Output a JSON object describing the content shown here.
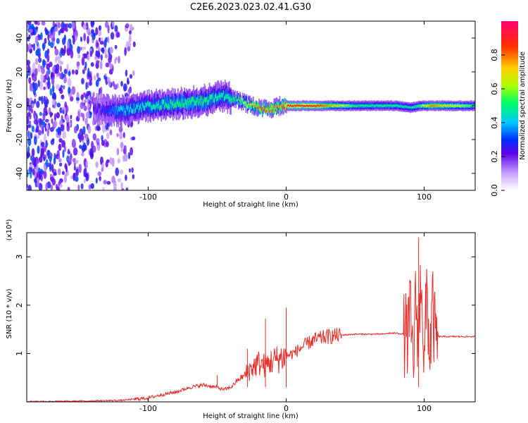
{
  "title": "C2E6.2023.023.02.41.G30",
  "chart_data": [
    {
      "type": "heatmap",
      "xlabel": "Height of straight line (km)",
      "ylabel": "Frequency (Hz)",
      "xlim": [
        -188,
        137
      ],
      "ylim": [
        -50,
        50
      ],
      "x_ticks": [
        -100,
        0,
        100
      ],
      "x_tick_labels": [
        "-100",
        "0",
        "100"
      ],
      "y_ticks": [
        -40,
        -20,
        0,
        20,
        40
      ],
      "y_tick_labels": [
        "-40",
        "-20",
        "0",
        "20",
        "40"
      ],
      "colorbar": {
        "label": "Normalized spectral amplitude",
        "range": [
          0,
          1
        ],
        "ticks": [
          0.0,
          0.2,
          0.4,
          0.6,
          0.8
        ],
        "tick_labels": [
          "0.0",
          "0.2",
          "0.4",
          "0.6",
          "0.8"
        ],
        "colors": [
          "#ffffff",
          "#b47cff",
          "#5a00e8",
          "#0040ff",
          "#00d8ff",
          "#00ff60",
          "#c8ff00",
          "#ffd000",
          "#ff4000",
          "#ff0070"
        ]
      },
      "ridge": {
        "description_x": [
          -135,
          -120,
          -100,
          -80,
          -60,
          -45,
          -35,
          -25,
          -18,
          -10,
          -5,
          0,
          20,
          50,
          80,
          90,
          97,
          105,
          137
        ],
        "center_freq": [
          -2,
          -3,
          0,
          1,
          3,
          6,
          3,
          0,
          -2,
          -2,
          0,
          0,
          0,
          0,
          0,
          -1,
          0,
          0,
          0
        ],
        "peak_amplitude": [
          0.25,
          0.45,
          0.5,
          0.55,
          0.55,
          0.5,
          0.6,
          0.75,
          0.9,
          0.85,
          0.8,
          0.95,
          0.95,
          0.55,
          0.55,
          0.5,
          0.6,
          0.85,
          0.55
        ]
      },
      "noise_region_xlim": [
        -188,
        -110
      ]
    },
    {
      "type": "line",
      "xlabel": "Height of straight line (km)",
      "ylabel": "SNR (10 * v/v)",
      "y_multiplier_label": "(x10⁴)",
      "xlim": [
        -188,
        137
      ],
      "ylim": [
        0,
        3.5
      ],
      "x_ticks": [
        -100,
        0,
        100
      ],
      "x_tick_labels": [
        "-100",
        "0",
        "100"
      ],
      "y_ticks": [
        1,
        2,
        3
      ],
      "y_tick_labels": [
        "1",
        "2",
        "3"
      ],
      "series": [
        {
          "color": "#e8302c",
          "x": [
            -188,
            -160,
            -140,
            -120,
            -100,
            -90,
            -80,
            -70,
            -60,
            -50,
            -45,
            -40,
            -35,
            -30,
            -25,
            -20,
            -15,
            -10,
            -5,
            0,
            5,
            10,
            15,
            20,
            30,
            40,
            50,
            60,
            70,
            75,
            80,
            85,
            88,
            90,
            92,
            94,
            96,
            98,
            100,
            102,
            104,
            106,
            108,
            110,
            120,
            137
          ],
          "y": [
            0.01,
            0.01,
            0.02,
            0.03,
            0.08,
            0.15,
            0.2,
            0.3,
            0.35,
            0.3,
            0.25,
            0.3,
            0.45,
            0.55,
            0.7,
            0.8,
            0.75,
            0.85,
            0.9,
            0.95,
            1.0,
            1.1,
            1.2,
            1.28,
            1.35,
            1.38,
            1.4,
            1.4,
            1.4,
            1.42,
            1.42,
            1.4,
            1.35,
            1.8,
            0.8,
            2.1,
            1.2,
            2.9,
            0.6,
            2.4,
            0.9,
            2.0,
            1.3,
            1.35,
            1.35,
            1.35
          ]
        }
      ],
      "spikes": [
        {
          "x": -50,
          "y": 0.55
        },
        {
          "x": -28,
          "y": 1.1
        },
        {
          "x": -15,
          "y": 1.72
        },
        {
          "x": 0,
          "y": 1.95
        },
        {
          "x": 96,
          "y": 3.4
        }
      ]
    }
  ]
}
